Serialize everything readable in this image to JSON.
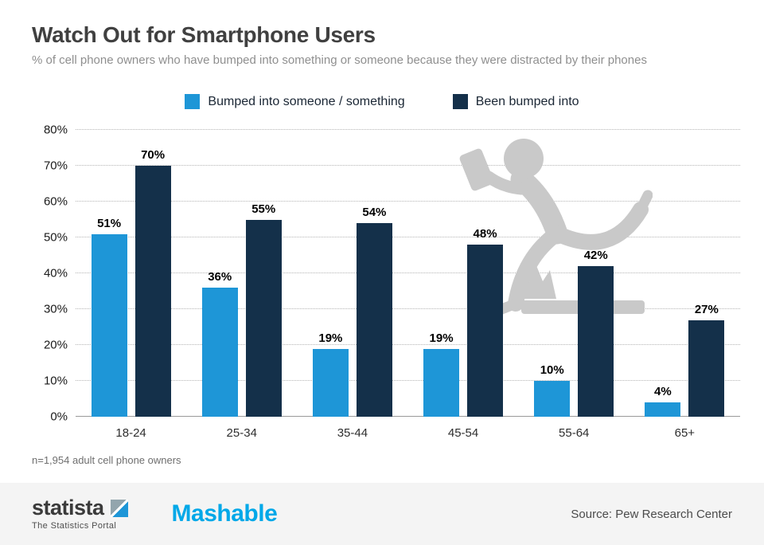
{
  "header": {
    "title": "Watch Out for Smartphone Users",
    "subtitle": "% of cell phone owners who have bumped into something or someone because they were distracted by their phones"
  },
  "chart_data": {
    "type": "bar",
    "categories": [
      "18-24",
      "25-34",
      "35-44",
      "45-54",
      "55-64",
      "65+"
    ],
    "series": [
      {
        "name": "Bumped into someone / something",
        "color": "#1e96d7",
        "values": [
          51,
          36,
          19,
          19,
          10,
          4
        ]
      },
      {
        "name": "Been bumped into",
        "color": "#14304a",
        "values": [
          70,
          55,
          54,
          48,
          42,
          27
        ]
      }
    ],
    "title": "Watch Out for Smartphone Users",
    "xlabel": "",
    "ylabel": "",
    "ylim": [
      0,
      80
    ],
    "ytick_step": 10,
    "ytick_suffix": "%",
    "grid": "horizontal-dotted",
    "legend_position": "top",
    "value_labels": "above-bars"
  },
  "note": "n=1,954 adult cell phone owners",
  "footer": {
    "statista_name": "statista",
    "statista_tagline": "The Statistics Portal",
    "partner": "Mashable",
    "source": "Source: Pew Research Center"
  },
  "colors": {
    "series1": "#1e96d7",
    "series2": "#14304a",
    "title_text": "#404040",
    "subtitle_text": "#8f8f8f",
    "footer_bg": "#f4f4f4",
    "partner_logo": "#00a8e8",
    "illustration": "#c9c9c9"
  },
  "icons": {
    "statista_mark": "statista-square-logo-icon",
    "illustration": "person-tripping-while-texting-illustration"
  }
}
